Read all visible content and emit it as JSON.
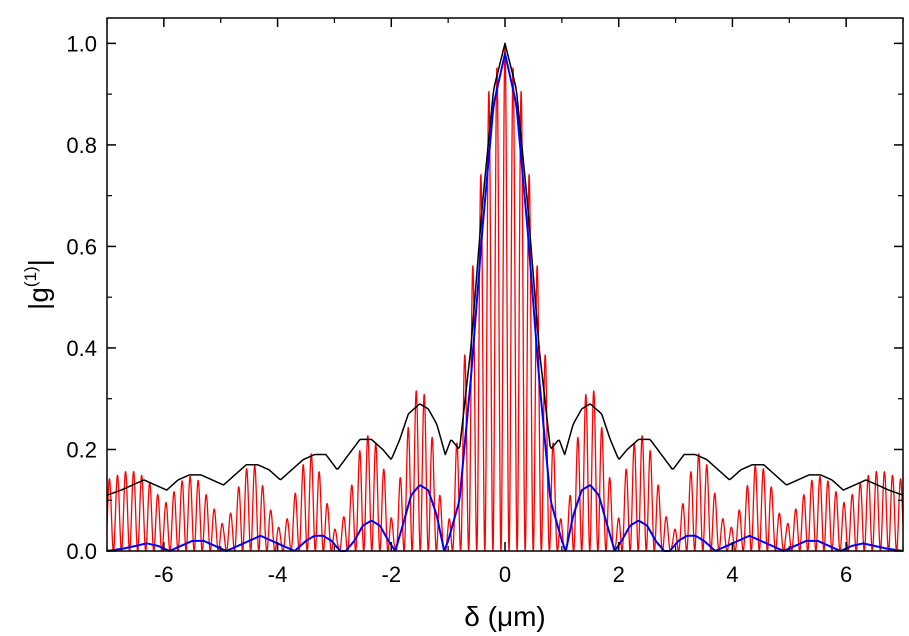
{
  "chart_data": {
    "type": "line",
    "title": "",
    "xlabel": "δ (μm)",
    "ylabel_base": "|g",
    "ylabel_sup": "(1)",
    "ylabel_end": "|",
    "xlim": [
      -7,
      7
    ],
    "ylim": [
      0,
      1.05
    ],
    "xticks": [
      -6,
      -4,
      -2,
      0,
      2,
      4,
      6
    ],
    "xtick_labels": [
      "-6",
      "-4",
      "-2",
      "0",
      "2",
      "4",
      "6"
    ],
    "yticks": [
      0.0,
      0.2,
      0.4,
      0.6,
      0.8,
      1.0
    ],
    "ytick_labels": [
      "0.0",
      "0.2",
      "0.4",
      "0.6",
      "0.8",
      "1.0"
    ],
    "grid": false,
    "legend": "none",
    "series": [
      {
        "color": "#ff0000",
        "kind": "fringes",
        "x": [
          0,
          0.3,
          0.6,
          0.9,
          1.0,
          1.05,
          1.15,
          1.35,
          1.5,
          1.65,
          1.85,
          1.95,
          2.1,
          2.35,
          2.55,
          2.8,
          2.95,
          3.2,
          3.35,
          3.55,
          3.8,
          3.95,
          4.2,
          4.35,
          4.6,
          4.8,
          4.95,
          5.2,
          5.4,
          5.6,
          5.8,
          6.0,
          6.2,
          6.4,
          6.6,
          7.0
        ],
        "envelope": [
          1.0,
          0.9,
          0.52,
          0.15,
          0.05,
          0.0,
          0.12,
          0.28,
          0.34,
          0.28,
          0.14,
          0.03,
          0.15,
          0.24,
          0.2,
          0.08,
          0.03,
          0.12,
          0.2,
          0.17,
          0.07,
          0.04,
          0.1,
          0.17,
          0.16,
          0.08,
          0.05,
          0.1,
          0.14,
          0.15,
          0.12,
          0.09,
          0.13,
          0.15,
          0.16,
          0.14
        ],
        "fringe_period": 0.142
      },
      {
        "color": "#000000",
        "x": [
          0,
          0.2,
          0.4,
          0.6,
          0.8,
          0.95,
          1.05,
          1.2,
          1.35,
          1.5,
          1.7,
          1.85,
          2.0,
          2.15,
          2.35,
          2.55,
          2.75,
          2.95,
          3.15,
          3.35,
          3.55,
          3.75,
          3.95,
          4.15,
          4.35,
          4.55,
          4.75,
          4.95,
          5.15,
          5.35,
          5.55,
          5.75,
          5.95,
          6.15,
          6.35,
          6.55,
          6.75,
          7.0
        ],
        "y": [
          1.0,
          0.91,
          0.68,
          0.4,
          0.2,
          0.22,
          0.19,
          0.25,
          0.28,
          0.29,
          0.27,
          0.22,
          0.18,
          0.2,
          0.22,
          0.22,
          0.19,
          0.16,
          0.19,
          0.19,
          0.18,
          0.16,
          0.14,
          0.16,
          0.17,
          0.17,
          0.15,
          0.13,
          0.14,
          0.15,
          0.15,
          0.14,
          0.12,
          0.13,
          0.14,
          0.13,
          0.12,
          0.11
        ]
      },
      {
        "color": "#0000ff",
        "x": [
          0,
          0.2,
          0.4,
          0.6,
          0.8,
          1.0,
          1.07,
          1.2,
          1.35,
          1.5,
          1.65,
          1.8,
          1.93,
          2.05,
          2.2,
          2.35,
          2.5,
          2.65,
          2.8,
          2.9,
          3.05,
          3.2,
          3.35,
          3.5,
          3.7,
          3.9,
          4.1,
          4.3,
          4.5,
          4.7,
          4.9,
          5.1,
          5.3,
          5.5,
          5.7,
          5.9,
          6.1,
          6.3,
          6.5,
          6.7,
          7.0
        ],
        "y": [
          0.98,
          0.88,
          0.63,
          0.34,
          0.1,
          0.02,
          0.0,
          0.07,
          0.12,
          0.13,
          0.11,
          0.05,
          0.0,
          0.02,
          0.05,
          0.06,
          0.05,
          0.02,
          0.0,
          0.0,
          0.02,
          0.03,
          0.03,
          0.02,
          0.0,
          0.01,
          0.02,
          0.03,
          0.02,
          0.01,
          0.0,
          0.01,
          0.02,
          0.02,
          0.01,
          0.0,
          0.01,
          0.015,
          0.01,
          0.005,
          0.0
        ]
      }
    ]
  }
}
